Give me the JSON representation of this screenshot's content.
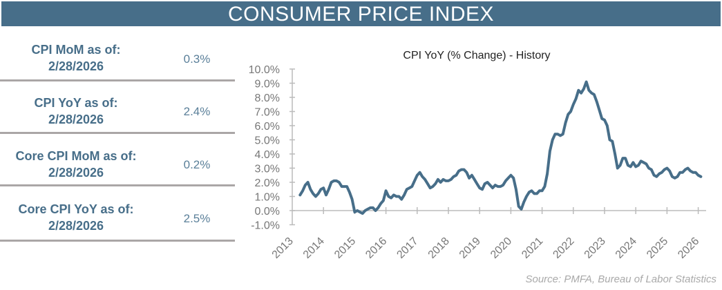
{
  "header": {
    "title": "CONSUMER PRICE INDEX"
  },
  "stats": [
    {
      "label_line1": "CPI MoM as of:",
      "label_line2": "2/28/2026",
      "value": "0.3%"
    },
    {
      "label_line1": "CPI YoY as of:",
      "label_line2": "2/28/2026",
      "value": "2.4%"
    },
    {
      "label_line1": "Core CPI MoM as of:",
      "label_line2": "2/28/2026",
      "value": "0.2%"
    },
    {
      "label_line1": "Core CPI YoY as of:",
      "label_line2": "2/28/2026",
      "value": "2.5%"
    }
  ],
  "source": "Source:  PMFA,  Bureau of Labor Statistics",
  "colors": {
    "brand": "#476e89",
    "line": "#476e89",
    "divider": "#aaa6a6"
  },
  "chart_data": {
    "type": "line",
    "title": "CPI YoY (% Change) - History",
    "xlabel": "",
    "ylabel": "",
    "ylim": [
      -1,
      10
    ],
    "xlim": [
      2013,
      2026
    ],
    "y_ticks": [
      "-1.0%",
      "0.0%",
      "1.0%",
      "2.0%",
      "3.0%",
      "4.0%",
      "5.0%",
      "6.0%",
      "7.0%",
      "8.0%",
      "9.0%",
      "10.0%"
    ],
    "x_ticks": [
      "2013",
      "2014",
      "2015",
      "2016",
      "2017",
      "2018",
      "2019",
      "2020",
      "2021",
      "2022",
      "2023",
      "2024",
      "2025",
      "2026"
    ],
    "grid": false,
    "start": "2013-04",
    "frequency": "monthly",
    "values": [
      1.1,
      1.4,
      1.8,
      2.0,
      1.5,
      1.2,
      1.0,
      1.2,
      1.5,
      1.6,
      1.1,
      1.5,
      2.0,
      2.1,
      2.1,
      2.0,
      1.7,
      1.7,
      1.7,
      1.3,
      0.8,
      -0.1,
      0.0,
      -0.1,
      -0.2,
      0.0,
      0.1,
      0.2,
      0.2,
      0.0,
      0.2,
      0.5,
      0.7,
      1.4,
      1.0,
      0.9,
      1.1,
      1.0,
      1.0,
      0.8,
      1.1,
      1.5,
      1.6,
      1.7,
      2.1,
      2.5,
      2.7,
      2.4,
      2.2,
      1.9,
      1.6,
      1.7,
      1.9,
      2.2,
      2.0,
      2.2,
      2.1,
      2.1,
      2.2,
      2.4,
      2.5,
      2.8,
      2.9,
      2.9,
      2.7,
      2.3,
      2.5,
      2.2,
      1.9,
      1.6,
      1.5,
      1.9,
      2.0,
      1.8,
      1.6,
      1.8,
      1.7,
      1.7,
      1.8,
      2.1,
      2.3,
      2.5,
      2.3,
      1.5,
      0.3,
      0.1,
      0.6,
      1.0,
      1.3,
      1.4,
      1.2,
      1.2,
      1.4,
      1.4,
      1.7,
      2.6,
      4.2,
      5.0,
      5.4,
      5.4,
      5.3,
      5.4,
      6.2,
      6.8,
      7.0,
      7.5,
      7.9,
      8.5,
      8.3,
      8.6,
      9.1,
      8.5,
      8.3,
      8.2,
      7.7,
      7.1,
      6.5,
      6.4,
      6.0,
      5.0,
      4.9,
      4.0,
      3.0,
      3.2,
      3.7,
      3.7,
      3.2,
      3.1,
      3.4,
      3.1,
      3.2,
      3.5,
      3.4,
      3.3,
      3.0,
      2.9,
      2.5,
      2.4,
      2.6,
      2.7,
      2.9,
      3.0,
      2.8,
      2.4,
      2.3,
      2.4,
      2.7,
      2.7,
      2.9,
      3.0,
      2.8,
      2.7,
      2.7,
      2.5,
      2.4
    ]
  }
}
